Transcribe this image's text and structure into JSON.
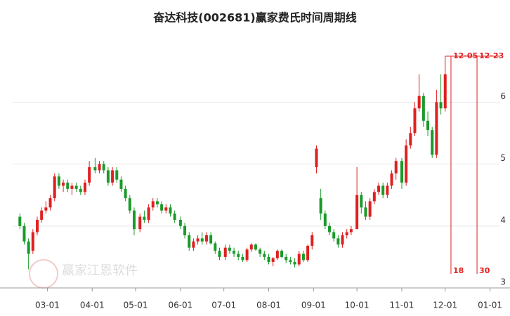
{
  "chart_data": {
    "type": "candlestick",
    "title": "奋达科技(002681)赢家费氏时间周期线",
    "watermark": "赢家江恩软件",
    "up_color": "#e02020",
    "down_color": "#1a9a2a",
    "grid": true,
    "ylim": [
      3,
      7.06
    ],
    "yticks": [
      3,
      4,
      5,
      6
    ],
    "xlim": [
      "02-05",
      "01-08"
    ],
    "xticks": [
      "03-01",
      "04-01",
      "05-01",
      "06-01",
      "07-01",
      "08-01",
      "09-01",
      "10-01",
      "11-01",
      "12-01",
      "01-01"
    ],
    "x": [
      "02-10",
      "02-13",
      "02-16",
      "02-19",
      "02-22",
      "02-25",
      "02-28",
      "03-03",
      "03-06",
      "03-09",
      "03-12",
      "03-15",
      "03-18",
      "03-21",
      "03-24",
      "03-27",
      "03-30",
      "04-03",
      "04-06",
      "04-09",
      "04-12",
      "04-15",
      "04-18",
      "04-21",
      "04-24",
      "04-27",
      "04-30",
      "05-04",
      "05-07",
      "05-10",
      "05-13",
      "05-16",
      "05-19",
      "05-22",
      "05-25",
      "05-28",
      "06-01",
      "06-04",
      "06-07",
      "06-10",
      "06-13",
      "06-16",
      "06-19",
      "06-22",
      "06-25",
      "06-28",
      "07-02",
      "07-05",
      "07-08",
      "07-11",
      "07-14",
      "07-17",
      "07-20",
      "07-23",
      "07-26",
      "07-29",
      "08-01",
      "08-04",
      "08-07",
      "08-10",
      "08-13",
      "08-16",
      "08-19",
      "08-22",
      "08-25",
      "08-28",
      "08-31",
      "09-03",
      "09-06",
      "09-09",
      "09-12",
      "09-15",
      "09-18",
      "09-21",
      "09-24",
      "09-27",
      "10-01",
      "10-04",
      "10-07",
      "10-10",
      "10-13",
      "10-16",
      "10-19",
      "10-22",
      "10-25",
      "10-28",
      "11-01",
      "11-04",
      "11-07",
      "11-10",
      "11-13",
      "11-16",
      "11-19",
      "11-22",
      "11-25",
      "11-28",
      "12-01"
    ],
    "open": [
      4.15,
      4.0,
      3.75,
      3.6,
      3.9,
      4.1,
      4.25,
      4.3,
      4.45,
      4.8,
      4.65,
      4.7,
      4.6,
      4.65,
      4.6,
      4.55,
      4.7,
      4.95,
      4.9,
      5.0,
      4.9,
      4.7,
      4.9,
      4.75,
      4.6,
      4.45,
      4.25,
      3.95,
      4.15,
      4.1,
      4.3,
      4.4,
      4.35,
      4.25,
      4.3,
      4.2,
      4.1,
      4.0,
      3.85,
      3.65,
      3.75,
      3.8,
      3.75,
      3.85,
      3.72,
      3.6,
      3.5,
      3.65,
      3.6,
      3.55,
      3.5,
      3.45,
      3.62,
      3.7,
      3.62,
      3.55,
      3.5,
      3.42,
      3.48,
      3.6,
      3.5,
      3.45,
      3.42,
      3.38,
      3.55,
      3.45,
      3.68,
      4.95,
      4.45,
      4.2,
      4.0,
      3.9,
      3.8,
      3.7,
      3.85,
      3.9,
      3.95,
      4.5,
      4.3,
      4.15,
      4.4,
      4.55,
      4.65,
      4.5,
      4.65,
      4.85,
      5.05,
      4.7,
      5.3,
      5.5,
      5.9,
      6.1,
      5.7,
      5.55,
      5.15,
      6.0,
      5.9
    ],
    "high": [
      4.2,
      4.05,
      3.8,
      3.95,
      4.15,
      4.3,
      4.4,
      4.5,
      4.85,
      4.85,
      4.75,
      4.75,
      4.7,
      4.7,
      4.65,
      4.75,
      5.05,
      5.1,
      5.05,
      5.05,
      4.95,
      4.95,
      4.95,
      4.8,
      4.65,
      4.5,
      4.3,
      4.2,
      4.25,
      4.35,
      4.45,
      4.45,
      4.4,
      4.35,
      4.35,
      4.25,
      4.15,
      4.05,
      3.9,
      3.8,
      3.85,
      3.9,
      3.9,
      3.9,
      3.75,
      3.65,
      3.7,
      3.7,
      3.65,
      3.6,
      3.55,
      3.65,
      3.72,
      3.72,
      3.65,
      3.6,
      3.55,
      3.5,
      3.62,
      3.62,
      3.55,
      3.5,
      3.48,
      3.6,
      3.6,
      3.7,
      3.9,
      5.3,
      4.6,
      4.25,
      4.05,
      3.95,
      3.85,
      3.9,
      3.95,
      4.0,
      4.95,
      4.55,
      4.4,
      4.45,
      4.6,
      4.7,
      4.7,
      4.7,
      4.9,
      5.1,
      5.1,
      5.4,
      5.6,
      6.0,
      6.45,
      6.15,
      5.85,
      5.6,
      6.2,
      6.45,
      6.74
    ],
    "low": [
      3.95,
      3.7,
      3.3,
      3.55,
      3.85,
      4.05,
      4.2,
      4.25,
      4.4,
      4.6,
      4.55,
      4.55,
      4.5,
      4.55,
      4.5,
      4.5,
      4.65,
      4.85,
      4.85,
      4.85,
      4.65,
      4.65,
      4.7,
      4.55,
      4.4,
      4.2,
      3.85,
      3.9,
      4.05,
      4.05,
      4.25,
      4.3,
      4.2,
      4.2,
      4.15,
      4.05,
      3.95,
      3.8,
      3.6,
      3.6,
      3.7,
      3.7,
      3.7,
      3.7,
      3.55,
      3.45,
      3.45,
      3.55,
      3.5,
      3.45,
      3.42,
      3.42,
      3.58,
      3.6,
      3.5,
      3.45,
      3.38,
      3.35,
      3.45,
      3.48,
      3.4,
      3.38,
      3.33,
      3.35,
      3.42,
      3.42,
      3.62,
      4.85,
      4.1,
      3.95,
      3.85,
      3.75,
      3.65,
      3.65,
      3.8,
      3.85,
      3.95,
      4.2,
      4.1,
      4.1,
      4.35,
      4.5,
      4.45,
      4.45,
      4.6,
      4.75,
      4.6,
      4.65,
      5.25,
      5.45,
      5.85,
      5.6,
      5.45,
      5.1,
      5.1,
      5.8,
      5.85
    ],
    "close": [
      4.0,
      3.75,
      3.55,
      3.9,
      4.1,
      4.25,
      4.3,
      4.45,
      4.8,
      4.65,
      4.7,
      4.6,
      4.65,
      4.6,
      4.55,
      4.7,
      4.95,
      4.9,
      5.0,
      4.9,
      4.7,
      4.9,
      4.75,
      4.6,
      4.45,
      4.25,
      3.95,
      4.15,
      4.1,
      4.3,
      4.4,
      4.35,
      4.25,
      4.3,
      4.2,
      4.1,
      4.0,
      3.85,
      3.65,
      3.75,
      3.8,
      3.75,
      3.85,
      3.72,
      3.6,
      3.5,
      3.65,
      3.6,
      3.55,
      3.5,
      3.45,
      3.62,
      3.7,
      3.62,
      3.55,
      3.5,
      3.42,
      3.48,
      3.6,
      3.5,
      3.45,
      3.42,
      3.38,
      3.55,
      3.45,
      3.68,
      3.85,
      5.25,
      4.2,
      4.0,
      3.9,
      3.8,
      3.7,
      3.85,
      3.9,
      3.95,
      4.5,
      4.3,
      4.15,
      4.4,
      4.55,
      4.65,
      4.5,
      4.65,
      4.85,
      5.05,
      4.7,
      5.3,
      5.5,
      5.9,
      6.1,
      5.7,
      5.55,
      5.15,
      6.0,
      5.9,
      6.45
    ],
    "annotations": [
      {
        "x": "12-05",
        "label": "12-05",
        "count": 18
      },
      {
        "x": "12-23",
        "label": "12-23",
        "count": 30
      }
    ],
    "annotation_color": "#e02020"
  }
}
